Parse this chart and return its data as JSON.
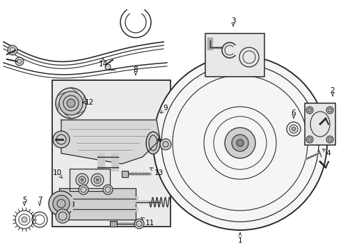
{
  "bg_color": "#ffffff",
  "line_color": "#2a2a2a",
  "box_fill": "#e8e8e8",
  "fig_w": 4.9,
  "fig_h": 3.6,
  "dpi": 100
}
